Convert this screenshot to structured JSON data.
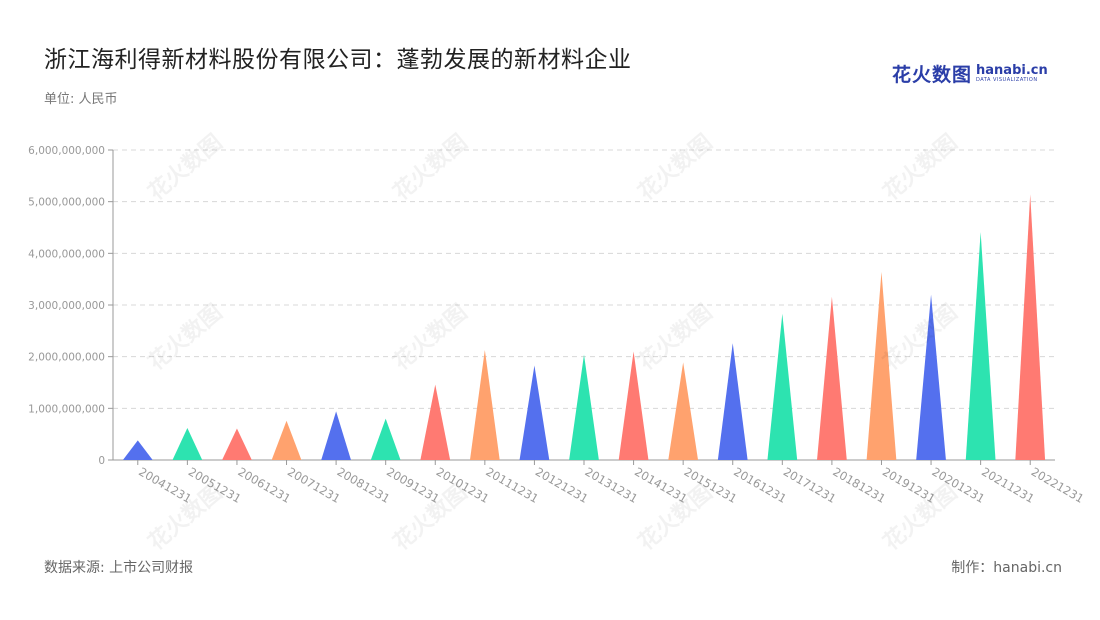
{
  "header": {
    "title": "浙江海利得新材料股份有限公司：蓬勃发展的新材料企业",
    "unit": "单位: 人民币"
  },
  "logo": {
    "cn": "花火数图",
    "en": "hanabi.cn",
    "tagline": "DATA VISUALIZATION"
  },
  "footer": {
    "source": "数据来源: 上市公司财报",
    "credit": "制作：hanabi.cn"
  },
  "watermark": "花火数图",
  "colors": [
    "#5470ee",
    "#2de3b0",
    "#ff7a72",
    "#ffa26e"
  ],
  "chart_data": {
    "type": "bar",
    "bar_shape": "triangle",
    "categories": [
      "20041231",
      "20051231",
      "20061231",
      "20071231",
      "20081231",
      "20091231",
      "20101231",
      "20111231",
      "20121231",
      "20131231",
      "20141231",
      "20151231",
      "20161231",
      "20171231",
      "20181231",
      "20191231",
      "20201231",
      "20211231",
      "20221231"
    ],
    "values": [
      380000000,
      620000000,
      610000000,
      760000000,
      940000000,
      800000000,
      1460000000,
      2130000000,
      1830000000,
      2040000000,
      2100000000,
      1890000000,
      2260000000,
      2830000000,
      3160000000,
      3640000000,
      3200000000,
      4410000000,
      5140000000
    ],
    "y_ticks": [
      "0",
      "1,000,000,000",
      "2,000,000,000",
      "3,000,000,000",
      "4,000,000,000",
      "5,000,000,000",
      "6,000,000,000"
    ],
    "ylim": [
      0,
      6000000000
    ],
    "grid": true,
    "legend": "none"
  }
}
